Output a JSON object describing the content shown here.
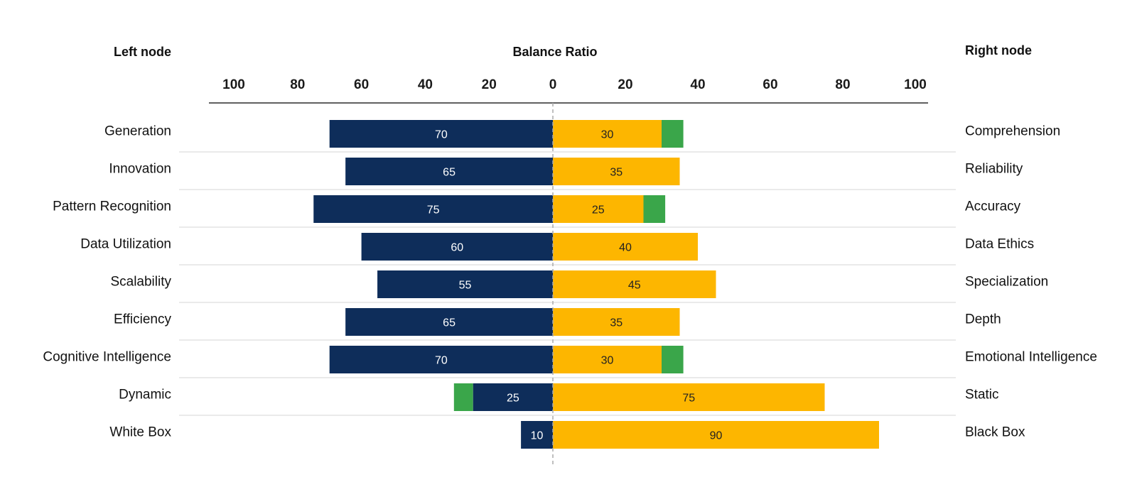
{
  "chart_data": {
    "type": "bar",
    "title": "Balance Ratio",
    "left_header": "Left node",
    "right_header": "Right node",
    "ticks_left": [
      "100",
      "80",
      "60",
      "40",
      "20",
      "0"
    ],
    "ticks_right": [
      "20",
      "40",
      "60",
      "80",
      "100"
    ],
    "xlim": [
      -100,
      100
    ],
    "grid": "horizontal row separators",
    "colors": {
      "left": "#0e2d5a",
      "right": "#fdb600",
      "extra": "#3aa64a",
      "left_label": "#ffffff",
      "right_label": "#222222",
      "center_line": "#aaaaaa",
      "separator": "#d4d4d4",
      "axis": "#000000"
    },
    "rows": [
      {
        "left_label": "Generation",
        "right_label": "Comprehension",
        "left_value": 70,
        "right_value": 30,
        "left_extra": 0,
        "right_extra": 6
      },
      {
        "left_label": "Innovation",
        "right_label": "Reliability",
        "left_value": 65,
        "right_value": 35,
        "left_extra": 0,
        "right_extra": 0
      },
      {
        "left_label": "Pattern Recognition",
        "right_label": "Accuracy",
        "left_value": 75,
        "right_value": 25,
        "left_extra": 0,
        "right_extra": 6
      },
      {
        "left_label": "Data Utilization",
        "right_label": "Data Ethics",
        "left_value": 60,
        "right_value": 40,
        "left_extra": 0,
        "right_extra": 0
      },
      {
        "left_label": "Scalability",
        "right_label": "Specialization",
        "left_value": 55,
        "right_value": 45,
        "left_extra": 0,
        "right_extra": 0
      },
      {
        "left_label": "Efficiency",
        "right_label": "Depth",
        "left_value": 65,
        "right_value": 35,
        "left_extra": 0,
        "right_extra": 0
      },
      {
        "left_label": "Cognitive Intelligence",
        "right_label": "Emotional Intelligence",
        "left_value": 70,
        "right_value": 30,
        "left_extra": 0,
        "right_extra": 6
      },
      {
        "left_label": "Dynamic",
        "right_label": "Static",
        "left_value": 25,
        "right_value": 75,
        "left_extra": 6,
        "right_extra": 0
      },
      {
        "left_label": "White Box",
        "right_label": "Black Box",
        "left_value": 10,
        "right_value": 90,
        "left_extra": 0,
        "right_extra": 0
      }
    ]
  }
}
